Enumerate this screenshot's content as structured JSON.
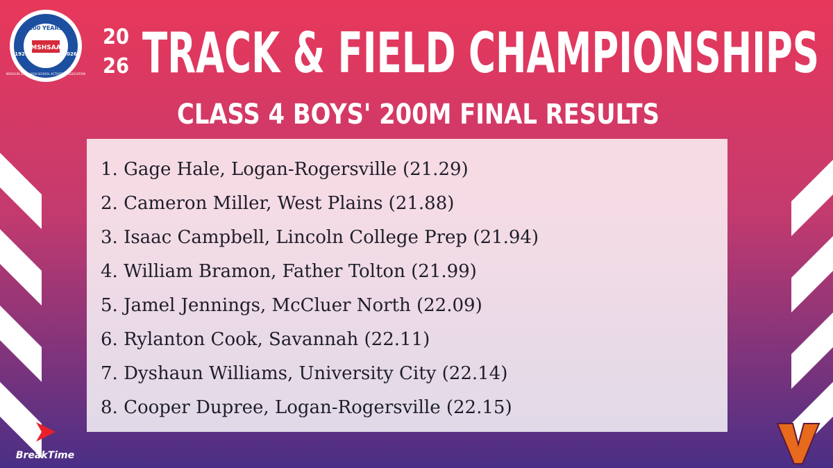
{
  "logo": {
    "top": "100 YEARS",
    "left_year": "1926",
    "center": "MSHSAA",
    "right_year": "2026",
    "ring": "MISSOURI STATE HIGH SCHOOL ACTIVITIES ASSOCIATION"
  },
  "header": {
    "year_top": "20",
    "year_bottom": "26",
    "title": "TRACK & FIELD CHAMPIONSHIPS",
    "subtitle": "CLASS 4 BOYS' 200M FINAL RESULTS"
  },
  "results": [
    "1. Gage Hale, Logan-Rogersville (21.29)",
    "2. Cameron Miller, West Plains (21.88)",
    "3. Isaac Campbell, Lincoln College Prep (21.94)",
    "4. William Bramon, Father Tolton (21.99)",
    "5. Jamel Jennings, McCluer North (22.09)",
    "6. Rylanton Cook, Savannah (22.11)",
    "7. Dyshaun Williams, University City (22.14)",
    "8. Cooper Dupree, Logan-Rogersville (22.15)"
  ],
  "sponsor": "BreakTime"
}
